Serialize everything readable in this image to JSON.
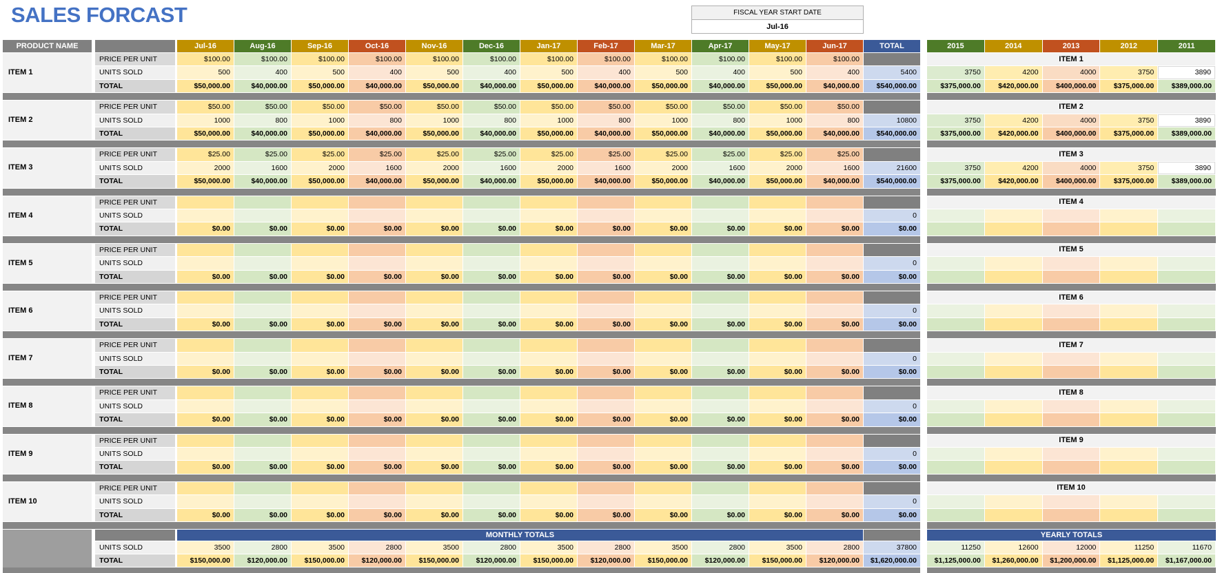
{
  "title": "SALES FORCAST",
  "fiscal": {
    "label": "FISCAL YEAR START DATE",
    "value": "Jul-16"
  },
  "row_labels": {
    "price": "PRICE PER UNIT",
    "units": "UNITS SOLD",
    "total": "TOTAL"
  },
  "colors": {
    "title_blue": "#4472c4",
    "header_gold": "#bf9000",
    "header_green": "#4e7b28",
    "header_red": "#c1511f",
    "header_blue": "#3b5a98",
    "yellow_strong": "#ffe599",
    "yellow_med": "#ffedb0",
    "yellow_light": "#fff2cc",
    "green_strong": "#d5e7c3",
    "green_med": "#dcebcf",
    "green_light": "#eaf2e0",
    "orange_strong": "#f8cba6",
    "orange_med": "#fadcc3",
    "orange_light": "#fce5d4",
    "blue_strong": "#b5c7e8",
    "blue_light": "#cdd9ee",
    "gray_dark": "#808080",
    "gray_sep": "#868686",
    "gray_block": "#9e9e9e",
    "gray_banner": "#828282",
    "label_dark": "#d9d9d9",
    "label_light": "#f0f0f0",
    "label_total": "#d5d5d5",
    "item_bg": "#f2f2f2",
    "white": "#ffffff"
  },
  "left": {
    "product_header": "PRODUCT NAME",
    "total_header": "TOTAL",
    "months": [
      "Jul-16",
      "Aug-16",
      "Sep-16",
      "Oct-16",
      "Nov-16",
      "Dec-16",
      "Jan-17",
      "Feb-17",
      "Mar-17",
      "Apr-17",
      "May-17",
      "Jun-17"
    ],
    "month_header_colors": [
      "gold",
      "green",
      "gold",
      "red",
      "gold",
      "green",
      "gold",
      "red",
      "gold",
      "green",
      "gold",
      "red"
    ],
    "month_families": [
      "y",
      "g",
      "y",
      "o",
      "y",
      "g",
      "y",
      "o",
      "y",
      "g",
      "y",
      "o"
    ],
    "items": [
      {
        "name": "ITEM 1",
        "price": [
          "$100.00",
          "$100.00",
          "$100.00",
          "$100.00",
          "$100.00",
          "$100.00",
          "$100.00",
          "$100.00",
          "$100.00",
          "$100.00",
          "$100.00",
          "$100.00"
        ],
        "units": [
          "500",
          "400",
          "500",
          "400",
          "500",
          "400",
          "500",
          "400",
          "500",
          "400",
          "500",
          "400"
        ],
        "totals": [
          "$50,000.00",
          "$40,000.00",
          "$50,000.00",
          "$40,000.00",
          "$50,000.00",
          "$40,000.00",
          "$50,000.00",
          "$40,000.00",
          "$50,000.00",
          "$40,000.00",
          "$50,000.00",
          "$40,000.00"
        ],
        "units_total": "5400",
        "grand_total": "$540,000.00"
      },
      {
        "name": "ITEM 2",
        "price": [
          "$50.00",
          "$50.00",
          "$50.00",
          "$50.00",
          "$50.00",
          "$50.00",
          "$50.00",
          "$50.00",
          "$50.00",
          "$50.00",
          "$50.00",
          "$50.00"
        ],
        "units": [
          "1000",
          "800",
          "1000",
          "800",
          "1000",
          "800",
          "1000",
          "800",
          "1000",
          "800",
          "1000",
          "800"
        ],
        "totals": [
          "$50,000.00",
          "$40,000.00",
          "$50,000.00",
          "$40,000.00",
          "$50,000.00",
          "$40,000.00",
          "$50,000.00",
          "$40,000.00",
          "$50,000.00",
          "$40,000.00",
          "$50,000.00",
          "$40,000.00"
        ],
        "units_total": "10800",
        "grand_total": "$540,000.00"
      },
      {
        "name": "ITEM 3",
        "price": [
          "$25.00",
          "$25.00",
          "$25.00",
          "$25.00",
          "$25.00",
          "$25.00",
          "$25.00",
          "$25.00",
          "$25.00",
          "$25.00",
          "$25.00",
          "$25.00"
        ],
        "units": [
          "2000",
          "1600",
          "2000",
          "1600",
          "2000",
          "1600",
          "2000",
          "1600",
          "2000",
          "1600",
          "2000",
          "1600"
        ],
        "totals": [
          "$50,000.00",
          "$40,000.00",
          "$50,000.00",
          "$40,000.00",
          "$50,000.00",
          "$40,000.00",
          "$50,000.00",
          "$40,000.00",
          "$50,000.00",
          "$40,000.00",
          "$50,000.00",
          "$40,000.00"
        ],
        "units_total": "21600",
        "grand_total": "$540,000.00"
      },
      {
        "name": "ITEM 4",
        "price": [
          "",
          "",
          "",
          "",
          "",
          "",
          "",
          "",
          "",
          "",
          "",
          ""
        ],
        "units": [
          "",
          "",
          "",
          "",
          "",
          "",
          "",
          "",
          "",
          "",
          "",
          ""
        ],
        "totals": [
          "$0.00",
          "$0.00",
          "$0.00",
          "$0.00",
          "$0.00",
          "$0.00",
          "$0.00",
          "$0.00",
          "$0.00",
          "$0.00",
          "$0.00",
          "$0.00"
        ],
        "units_total": "0",
        "grand_total": "$0.00"
      },
      {
        "name": "ITEM 5",
        "price": [
          "",
          "",
          "",
          "",
          "",
          "",
          "",
          "",
          "",
          "",
          "",
          ""
        ],
        "units": [
          "",
          "",
          "",
          "",
          "",
          "",
          "",
          "",
          "",
          "",
          "",
          ""
        ],
        "totals": [
          "$0.00",
          "$0.00",
          "$0.00",
          "$0.00",
          "$0.00",
          "$0.00",
          "$0.00",
          "$0.00",
          "$0.00",
          "$0.00",
          "$0.00",
          "$0.00"
        ],
        "units_total": "0",
        "grand_total": "$0.00"
      },
      {
        "name": "ITEM 6",
        "price": [
          "",
          "",
          "",
          "",
          "",
          "",
          "",
          "",
          "",
          "",
          "",
          ""
        ],
        "units": [
          "",
          "",
          "",
          "",
          "",
          "",
          "",
          "",
          "",
          "",
          "",
          ""
        ],
        "totals": [
          "$0.00",
          "$0.00",
          "$0.00",
          "$0.00",
          "$0.00",
          "$0.00",
          "$0.00",
          "$0.00",
          "$0.00",
          "$0.00",
          "$0.00",
          "$0.00"
        ],
        "units_total": "0",
        "grand_total": "$0.00"
      },
      {
        "name": "ITEM 7",
        "price": [
          "",
          "",
          "",
          "",
          "",
          "",
          "",
          "",
          "",
          "",
          "",
          ""
        ],
        "units": [
          "",
          "",
          "",
          "",
          "",
          "",
          "",
          "",
          "",
          "",
          "",
          ""
        ],
        "totals": [
          "$0.00",
          "$0.00",
          "$0.00",
          "$0.00",
          "$0.00",
          "$0.00",
          "$0.00",
          "$0.00",
          "$0.00",
          "$0.00",
          "$0.00",
          "$0.00"
        ],
        "units_total": "0",
        "grand_total": "$0.00"
      },
      {
        "name": "ITEM 8",
        "price": [
          "",
          "",
          "",
          "",
          "",
          "",
          "",
          "",
          "",
          "",
          "",
          ""
        ],
        "units": [
          "",
          "",
          "",
          "",
          "",
          "",
          "",
          "",
          "",
          "",
          "",
          ""
        ],
        "totals": [
          "$0.00",
          "$0.00",
          "$0.00",
          "$0.00",
          "$0.00",
          "$0.00",
          "$0.00",
          "$0.00",
          "$0.00",
          "$0.00",
          "$0.00",
          "$0.00"
        ],
        "units_total": "0",
        "grand_total": "$0.00"
      },
      {
        "name": "ITEM 9",
        "price": [
          "",
          "",
          "",
          "",
          "",
          "",
          "",
          "",
          "",
          "",
          "",
          ""
        ],
        "units": [
          "",
          "",
          "",
          "",
          "",
          "",
          "",
          "",
          "",
          "",
          "",
          ""
        ],
        "totals": [
          "$0.00",
          "$0.00",
          "$0.00",
          "$0.00",
          "$0.00",
          "$0.00",
          "$0.00",
          "$0.00",
          "$0.00",
          "$0.00",
          "$0.00",
          "$0.00"
        ],
        "units_total": "0",
        "grand_total": "$0.00"
      },
      {
        "name": "ITEM 10",
        "price": [
          "",
          "",
          "",
          "",
          "",
          "",
          "",
          "",
          "",
          "",
          "",
          ""
        ],
        "units": [
          "",
          "",
          "",
          "",
          "",
          "",
          "",
          "",
          "",
          "",
          "",
          ""
        ],
        "totals": [
          "$0.00",
          "$0.00",
          "$0.00",
          "$0.00",
          "$0.00",
          "$0.00",
          "$0.00",
          "$0.00",
          "$0.00",
          "$0.00",
          "$0.00",
          "$0.00"
        ],
        "units_total": "0",
        "grand_total": "$0.00"
      }
    ],
    "monthly": {
      "banner": "MONTHLY TOTALS",
      "units": [
        "3500",
        "2800",
        "3500",
        "2800",
        "3500",
        "2800",
        "3500",
        "2800",
        "3500",
        "2800",
        "3500",
        "2800"
      ],
      "totals": [
        "$150,000.00",
        "$120,000.00",
        "$150,000.00",
        "$120,000.00",
        "$150,000.00",
        "$120,000.00",
        "$150,000.00",
        "$120,000.00",
        "$150,000.00",
        "$120,000.00",
        "$150,000.00",
        "$120,000.00"
      ],
      "units_total": "37800",
      "grand_total": "$1,620,000.00"
    }
  },
  "right": {
    "years": [
      "2015",
      "2014",
      "2013",
      "2012",
      "2011"
    ],
    "year_header_colors": [
      "green",
      "gold",
      "red",
      "gold",
      "green"
    ],
    "year_families": [
      "g",
      "y",
      "o",
      "y",
      "g"
    ],
    "items": [
      {
        "name": "ITEM 1",
        "units": [
          "3750",
          "4200",
          "4000",
          "3750",
          "3890"
        ],
        "totals": [
          "$375,000.00",
          "$420,000.00",
          "$400,000.00",
          "$375,000.00",
          "$389,000.00"
        ]
      },
      {
        "name": "ITEM 2",
        "units": [
          "3750",
          "4200",
          "4000",
          "3750",
          "3890"
        ],
        "totals": [
          "$375,000.00",
          "$420,000.00",
          "$400,000.00",
          "$375,000.00",
          "$389,000.00"
        ]
      },
      {
        "name": "ITEM 3",
        "units": [
          "3750",
          "4200",
          "4000",
          "3750",
          "3890"
        ],
        "totals": [
          "$375,000.00",
          "$420,000.00",
          "$400,000.00",
          "$375,000.00",
          "$389,000.00"
        ]
      },
      {
        "name": "ITEM 4",
        "units": [
          "",
          "",
          "",
          "",
          ""
        ],
        "totals": [
          "",
          "",
          "",
          "",
          ""
        ]
      },
      {
        "name": "ITEM 5",
        "units": [
          "",
          "",
          "",
          "",
          ""
        ],
        "totals": [
          "",
          "",
          "",
          "",
          ""
        ]
      },
      {
        "name": "ITEM 6",
        "units": [
          "",
          "",
          "",
          "",
          ""
        ],
        "totals": [
          "",
          "",
          "",
          "",
          ""
        ]
      },
      {
        "name": "ITEM 7",
        "units": [
          "",
          "",
          "",
          "",
          ""
        ],
        "totals": [
          "",
          "",
          "",
          "",
          ""
        ]
      },
      {
        "name": "ITEM 8",
        "units": [
          "",
          "",
          "",
          "",
          ""
        ],
        "totals": [
          "",
          "",
          "",
          "",
          ""
        ]
      },
      {
        "name": "ITEM 9",
        "units": [
          "",
          "",
          "",
          "",
          ""
        ],
        "totals": [
          "",
          "",
          "",
          "",
          ""
        ]
      },
      {
        "name": "ITEM 10",
        "units": [
          "",
          "",
          "",
          "",
          ""
        ],
        "totals": [
          "",
          "",
          "",
          "",
          ""
        ]
      }
    ],
    "yearly": {
      "banner": "YEARLY TOTALS",
      "units": [
        "11250",
        "12600",
        "12000",
        "11250",
        "11670"
      ],
      "totals": [
        "$1,125,000.00",
        "$1,260,000.00",
        "$1,200,000.00",
        "$1,125,000.00",
        "$1,167,000.00"
      ]
    }
  }
}
